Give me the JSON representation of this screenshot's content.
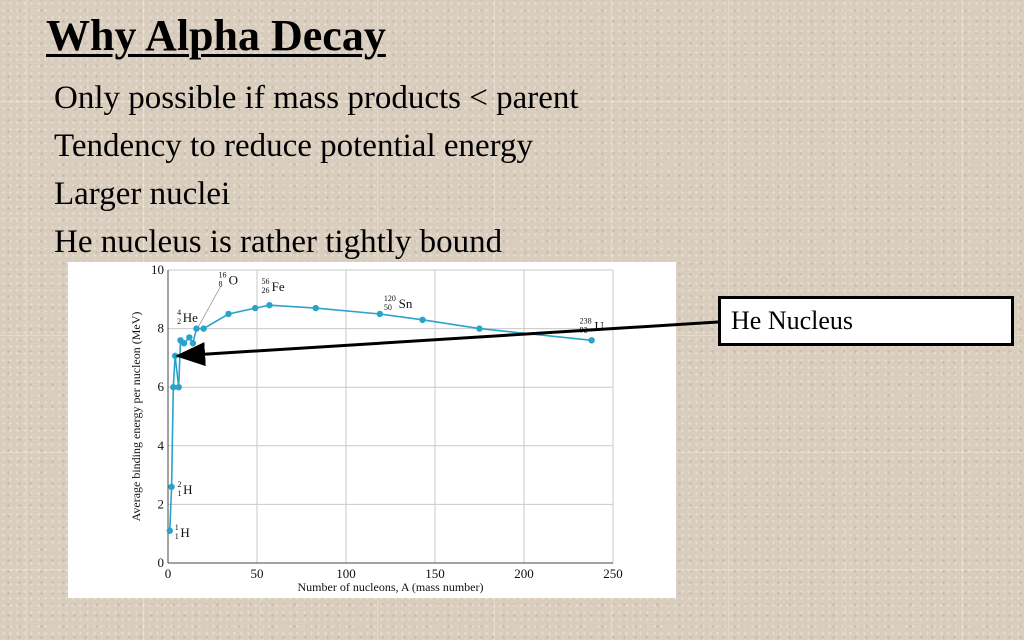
{
  "slide": {
    "title": "Why Alpha Decay",
    "bullets": [
      "Only possible if mass products < parent",
      "Tendency to reduce potential energy",
      "Larger nuclei",
      "He nucleus is rather tightly bound"
    ],
    "callout": "He Nucleus"
  },
  "colors": {
    "curve": "#29a3cc",
    "arrow": "#000000"
  },
  "chart_data": {
    "type": "line",
    "xlabel": "Number of nucleons, A (mass number)",
    "ylabel": "Average binding energy per nucleon (MeV)",
    "xlim": [
      0,
      250
    ],
    "ylim": [
      0,
      10
    ],
    "xticks": [
      "0",
      "50",
      "100",
      "150",
      "200",
      "250"
    ],
    "yticks": [
      "0",
      "2",
      "4",
      "6",
      "8",
      "10"
    ],
    "grid": true,
    "series": [
      {
        "name": "",
        "points": [
          [
            1,
            1.1
          ],
          [
            2,
            2.6
          ],
          [
            3,
            6.0
          ],
          [
            4,
            7.07
          ],
          [
            6,
            6.0
          ],
          [
            7,
            7.6
          ],
          [
            9,
            7.5
          ],
          [
            12,
            7.7
          ],
          [
            14,
            7.5
          ],
          [
            16,
            8.0
          ],
          [
            20,
            8.0
          ],
          [
            34,
            8.5
          ],
          [
            49,
            8.7
          ],
          [
            57,
            8.8
          ],
          [
            83,
            8.7
          ],
          [
            119,
            8.5
          ],
          [
            143,
            8.3
          ],
          [
            175,
            8.0
          ],
          [
            238,
            7.6
          ]
        ]
      }
    ],
    "nuclide_labels": [
      {
        "A": "1",
        "Z": "1",
        "symbol": "H",
        "x": 1,
        "y": 1.1
      },
      {
        "A": "2",
        "Z": "1",
        "symbol": "H",
        "x": 2,
        "y": 2.6
      },
      {
        "A": "4",
        "Z": "2",
        "symbol": "He",
        "x": 4,
        "y": 7.07
      },
      {
        "A": "16",
        "Z": "8",
        "symbol": "O",
        "x": 16,
        "y": 8.0
      },
      {
        "A": "56",
        "Z": "26",
        "symbol": "Fe",
        "x": 57,
        "y": 8.8
      },
      {
        "A": "120",
        "Z": "50",
        "symbol": "Sn",
        "x": 119,
        "y": 8.5
      },
      {
        "A": "238",
        "Z": "92",
        "symbol": "U",
        "x": 238,
        "y": 7.6
      }
    ]
  }
}
